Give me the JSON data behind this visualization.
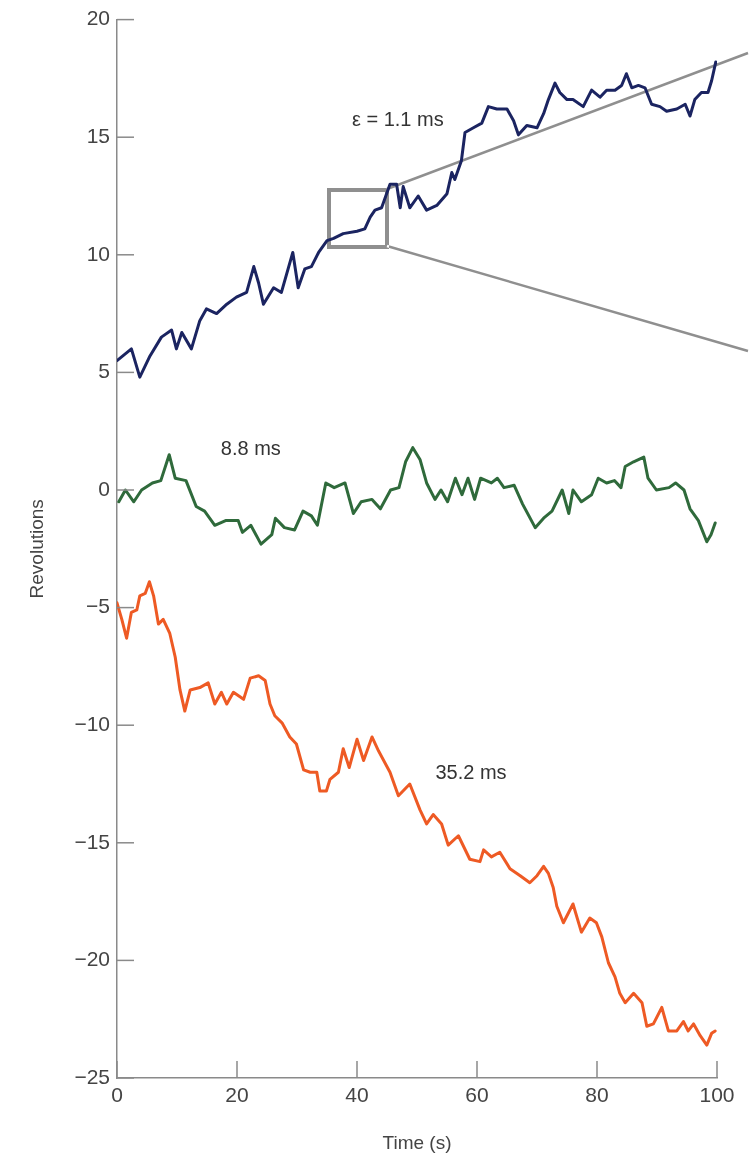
{
  "chart_data": {
    "type": "line",
    "xlabel": "Time (s)",
    "ylabel": "Revolutions",
    "xlim": [
      0,
      100
    ],
    "xticks": [
      0,
      20,
      40,
      60,
      80,
      100
    ],
    "ylim": [
      -25,
      20
    ],
    "yticks": [
      -25,
      -20,
      -15,
      -10,
      -5,
      0,
      5,
      10,
      15,
      20
    ],
    "series": [
      {
        "name": "ε = 1.1 ms",
        "color": "#1b2461",
        "x": [
          0,
          2.4,
          3.8,
          5.5,
          7.4,
          9.1,
          9.9,
          10.8,
          12.4,
          13.8,
          14.9,
          16.6,
          18.3,
          19.9,
          21.6,
          22.8,
          23.6,
          24.4,
          26.1,
          27.4,
          29.3,
          30.2,
          31.3,
          32.4,
          33.6,
          35.0,
          36.1,
          37.7,
          40.0,
          41.3,
          42.2,
          43.0,
          44.1,
          45.5,
          46.6,
          47.2,
          47.7,
          48.8,
          50.2,
          51.6,
          53.3,
          55.0,
          55.8,
          56.3,
          57.4,
          58.0,
          59.4,
          60.8,
          61.9,
          63.3,
          65.0,
          66.1,
          66.9,
          68.3,
          70.0,
          71.1,
          71.9,
          73.0,
          73.8,
          75.0,
          76.0,
          77.7,
          79.1,
          80.5,
          81.6,
          83.0,
          84.1,
          84.9,
          85.8,
          86.9,
          88.0,
          89.1,
          90.5,
          91.6,
          93.3,
          94.7,
          95.5,
          96.3,
          97.4,
          98.5,
          99.1,
          99.8
        ],
        "values": [
          5.5,
          6.0,
          4.8,
          5.7,
          6.5,
          6.8,
          6.0,
          6.7,
          6.0,
          7.2,
          7.7,
          7.5,
          7.9,
          8.2,
          8.4,
          9.5,
          8.8,
          7.9,
          8.6,
          8.4,
          10.1,
          8.6,
          9.4,
          9.5,
          10.1,
          10.6,
          10.7,
          10.9,
          11.0,
          11.1,
          11.6,
          11.9,
          12.0,
          13.0,
          13.0,
          12.0,
          12.9,
          12.0,
          12.5,
          11.9,
          12.1,
          12.6,
          13.5,
          13.2,
          14.0,
          15.2,
          15.4,
          15.6,
          16.3,
          16.2,
          16.2,
          15.7,
          15.1,
          15.5,
          15.4,
          16.0,
          16.6,
          17.3,
          16.9,
          16.6,
          16.6,
          16.3,
          17.0,
          16.7,
          17.0,
          17.0,
          17.2,
          17.7,
          17.1,
          17.2,
          17.1,
          16.4,
          16.3,
          16.1,
          16.2,
          16.4,
          15.9,
          16.6,
          16.9,
          16.9,
          17.4,
          18.2
        ]
      },
      {
        "name": "8.8 ms",
        "color": "#2f6a3b",
        "x": [
          0.3,
          1.4,
          2.8,
          4.1,
          5.9,
          7.3,
          8.7,
          9.7,
          11.5,
          13.2,
          14.6,
          16.3,
          18.1,
          20.2,
          20.9,
          22.3,
          24.0,
          25.8,
          26.4,
          27.9,
          29.6,
          31.0,
          32.4,
          33.4,
          34.8,
          36.2,
          38.0,
          39.4,
          40.7,
          42.5,
          43.9,
          45.6,
          47.0,
          48.1,
          49.3,
          50.5,
          51.6,
          53.0,
          54.0,
          55.1,
          56.4,
          57.5,
          58.5,
          59.6,
          60.6,
          62.4,
          63.4,
          64.5,
          66.2,
          67.6,
          69.7,
          71.1,
          72.5,
          74.2,
          75.3,
          76.0,
          77.4,
          79.1,
          80.2,
          81.6,
          82.9,
          84.0,
          84.7,
          86.1,
          87.8,
          88.5,
          89.9,
          92.0,
          93.1,
          94.5,
          95.5,
          96.9,
          98.3,
          99.0,
          99.7
        ],
        "values": [
          -0.5,
          0.0,
          -0.5,
          0.0,
          0.3,
          0.4,
          1.5,
          0.5,
          0.4,
          -0.7,
          -0.9,
          -1.5,
          -1.3,
          -1.3,
          -1.8,
          -1.5,
          -2.3,
          -1.9,
          -1.2,
          -1.6,
          -1.7,
          -0.9,
          -1.1,
          -1.5,
          0.3,
          0.1,
          0.3,
          -1.0,
          -0.5,
          -0.4,
          -0.8,
          0.0,
          0.1,
          1.2,
          1.8,
          1.3,
          0.3,
          -0.4,
          0.0,
          -0.5,
          0.5,
          -0.2,
          0.5,
          -0.4,
          0.5,
          0.3,
          0.5,
          0.1,
          0.2,
          -0.6,
          -1.6,
          -1.2,
          -0.9,
          0.0,
          -1.0,
          0.0,
          -0.5,
          -0.2,
          0.5,
          0.3,
          0.4,
          0.1,
          1.0,
          1.2,
          1.4,
          0.5,
          0.0,
          0.1,
          0.3,
          0.0,
          -0.8,
          -1.3,
          -2.2,
          -1.9,
          -1.4
        ]
      },
      {
        "name": "35.2 ms",
        "color": "#ee5a24",
        "x": [
          0,
          0.8,
          1.6,
          2.4,
          3.3,
          3.8,
          4.7,
          5.4,
          6.1,
          6.9,
          7.7,
          8.8,
          9.7,
          10.5,
          11.3,
          12.2,
          13.8,
          15.2,
          16.3,
          17.4,
          18.3,
          19.4,
          21.1,
          22.2,
          23.6,
          24.7,
          25.5,
          26.3,
          27.5,
          28.8,
          29.9,
          31.1,
          32.2,
          33.3,
          33.8,
          34.9,
          35.5,
          36.9,
          37.7,
          38.7,
          40.0,
          41.1,
          42.5,
          43.6,
          45.5,
          46.9,
          48.8,
          50.5,
          51.6,
          52.7,
          54.1,
          55.2,
          56.9,
          58.8,
          60.5,
          61.1,
          62.4,
          63.8,
          65.5,
          67.2,
          68.8,
          70.0,
          71.1,
          71.9,
          72.7,
          73.3,
          74.4,
          76.0,
          77.4,
          78.8,
          79.9,
          80.8,
          81.9,
          83.0,
          83.8,
          84.7,
          86.1,
          87.5,
          88.3,
          89.4,
          90.8,
          91.9,
          93.3,
          94.4,
          95.2,
          96.1,
          97.2,
          98.3,
          99.1,
          99.7
        ],
        "values": [
          -4.8,
          -5.5,
          -6.3,
          -5.2,
          -5.1,
          -4.5,
          -4.4,
          -3.9,
          -4.5,
          -5.7,
          -5.5,
          -6.1,
          -7.1,
          -8.5,
          -9.4,
          -8.5,
          -8.4,
          -8.2,
          -9.1,
          -8.6,
          -9.1,
          -8.6,
          -8.9,
          -8.0,
          -7.9,
          -8.1,
          -9.1,
          -9.6,
          -9.9,
          -10.5,
          -10.8,
          -11.9,
          -12.0,
          -12.0,
          -12.8,
          -12.8,
          -12.3,
          -12.0,
          -11.0,
          -11.8,
          -10.6,
          -11.5,
          -10.5,
          -11.1,
          -12.0,
          -13.0,
          -12.5,
          -13.6,
          -14.2,
          -13.8,
          -14.2,
          -15.1,
          -14.7,
          -15.7,
          -15.8,
          -15.3,
          -15.6,
          -15.4,
          -16.1,
          -16.4,
          -16.7,
          -16.4,
          -16.0,
          -16.3,
          -16.9,
          -17.7,
          -18.4,
          -17.6,
          -18.8,
          -18.2,
          -18.4,
          -19.0,
          -20.1,
          -20.7,
          -21.4,
          -21.8,
          -21.4,
          -21.8,
          -22.8,
          -22.7,
          -22.0,
          -23.0,
          -23.0,
          -22.6,
          -23.0,
          -22.7,
          -23.2,
          -23.6,
          -23.1,
          -23.0
        ]
      }
    ]
  }
}
